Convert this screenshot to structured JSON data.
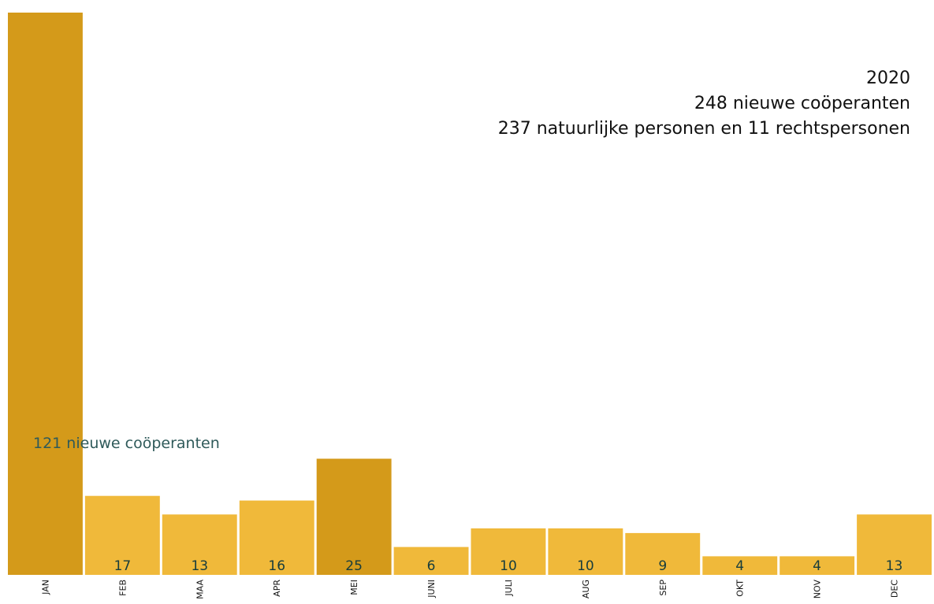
{
  "chart_data": {
    "type": "bar",
    "title": "2020",
    "subtitle_lines": [
      "248 nieuwe coöperanten",
      "237 natuurlijke personen en 11 rechtspersonen"
    ],
    "annotation": "121 nieuwe coöperanten",
    "categories": [
      "JAN",
      "FEB",
      "MAA",
      "APR",
      "MEI",
      "JUNI",
      "JULI",
      "AUG",
      "SEP",
      "OKT",
      "NOV",
      "DEC"
    ],
    "values": [
      121,
      17,
      13,
      16,
      25,
      6,
      10,
      10,
      9,
      4,
      4,
      13
    ],
    "value_labels": [
      "",
      "17",
      "13",
      "16",
      "25",
      "6",
      "10",
      "10",
      "9",
      "4",
      "4",
      "13"
    ],
    "highlighted": [
      true,
      false,
      false,
      false,
      true,
      false,
      false,
      false,
      false,
      false,
      false,
      false
    ],
    "colors": {
      "bar": "#f0b93a",
      "highlight": "#d49a1a",
      "value_label": "#173c3c",
      "axis_label": "#111111"
    },
    "ylim": [
      0,
      121
    ],
    "xlabel": "",
    "ylabel": "",
    "grid": false,
    "legend": "none"
  }
}
